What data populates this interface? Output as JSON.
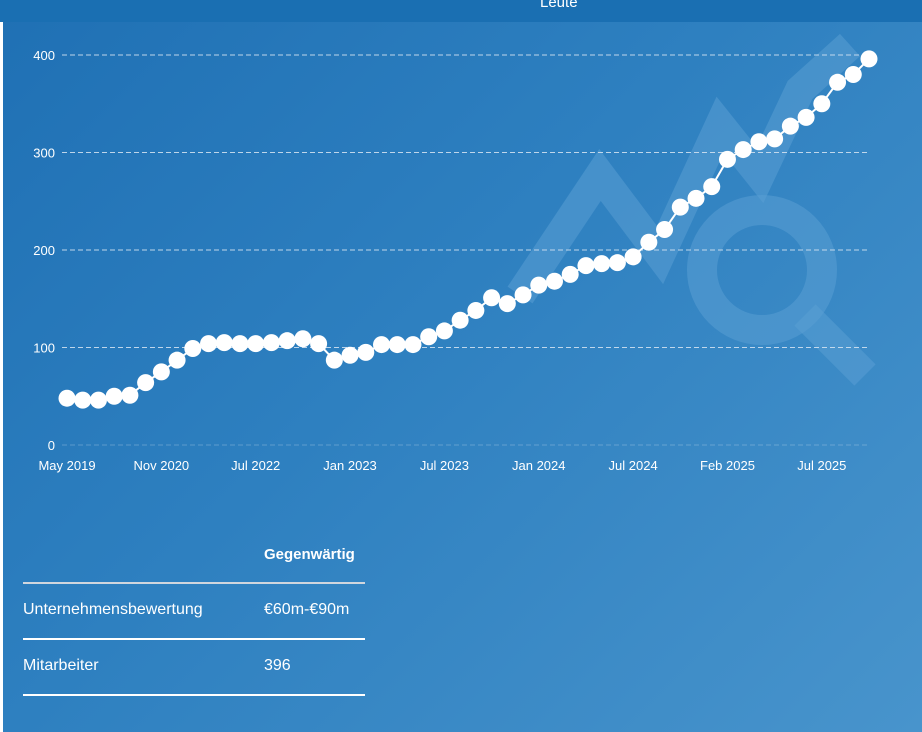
{
  "header": {
    "title_fragment": "Leute"
  },
  "colors": {
    "point": "#ffffff",
    "grid": "#cfe0f0",
    "watermark": "#5a9fd4"
  },
  "chart_data": {
    "type": "line",
    "title": "",
    "xlabel": "",
    "ylabel": "",
    "ylim": [
      0,
      400
    ],
    "yticks": [
      0,
      100,
      200,
      300,
      400
    ],
    "grid": true,
    "xtick_labels": [
      {
        "index": 0,
        "label": "May 2019"
      },
      {
        "index": 6,
        "label": "Nov 2020"
      },
      {
        "index": 12,
        "label": "Jul 2022"
      },
      {
        "index": 18,
        "label": "Jan 2023"
      },
      {
        "index": 24,
        "label": "Jul 2023"
      },
      {
        "index": 30,
        "label": "Jan 2024"
      },
      {
        "index": 36,
        "label": "Jul 2024"
      },
      {
        "index": 42,
        "label": "Feb 2025"
      },
      {
        "index": 48,
        "label": "Jul 2025"
      }
    ],
    "series": [
      {
        "name": "Mitarbeiter",
        "values": [
          48,
          46,
          46,
          50,
          51,
          64,
          75,
          87,
          99,
          104,
          105,
          104,
          104,
          105,
          107,
          109,
          104,
          87,
          92,
          95,
          103,
          103,
          103,
          111,
          117,
          128,
          138,
          151,
          145,
          154,
          164,
          168,
          175,
          184,
          186,
          187,
          193,
          208,
          221,
          244,
          253,
          265,
          293,
          303,
          311,
          314,
          327,
          336,
          350,
          372,
          380,
          396
        ]
      }
    ]
  },
  "table": {
    "column_header": "Gegenwärtig",
    "rows": [
      {
        "label": "Unternehmensbewertung",
        "value": "€60m-€90m"
      },
      {
        "label": "Mitarbeiter",
        "value": "396"
      }
    ]
  }
}
